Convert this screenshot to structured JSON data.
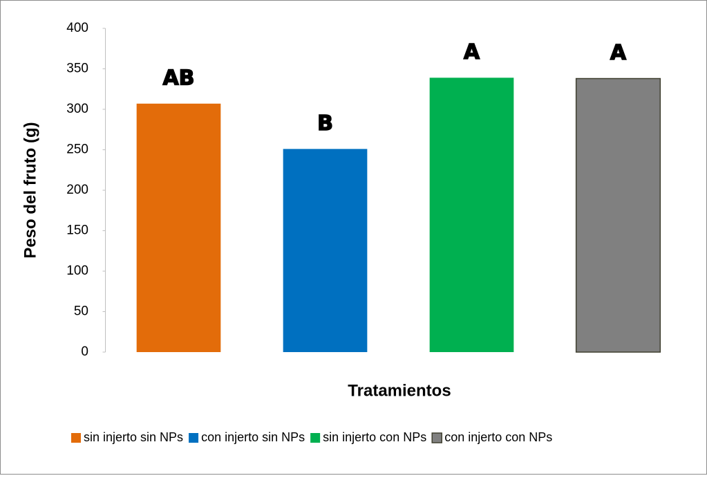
{
  "chart_data": {
    "type": "bar",
    "y_label": "Peso del fruto (g)",
    "x_label": "Tratamientos",
    "categories": [
      null
    ],
    "series": [
      {
        "name": "sin injerto sin NPs",
        "color": "#e36c0a",
        "values": [
          307
        ]
      },
      {
        "name": "con injerto sin NPs",
        "color": "#0070c0",
        "values": [
          251
        ]
      },
      {
        "name": "sin injerto con NPs",
        "color": "#00b050",
        "values": [
          339
        ]
      },
      {
        "name": "con injerto con NPs",
        "color": "#808080",
        "edgecolor": "#3f3f2f",
        "values": [
          338
        ]
      }
    ],
    "annotations": [
      "AB",
      "B",
      "A",
      "A"
    ],
    "ylim": [
      0,
      400
    ],
    "yticks": [
      0,
      50,
      100,
      150,
      200,
      250,
      300,
      350,
      400
    ],
    "grid": false,
    "legend": "bottom"
  }
}
